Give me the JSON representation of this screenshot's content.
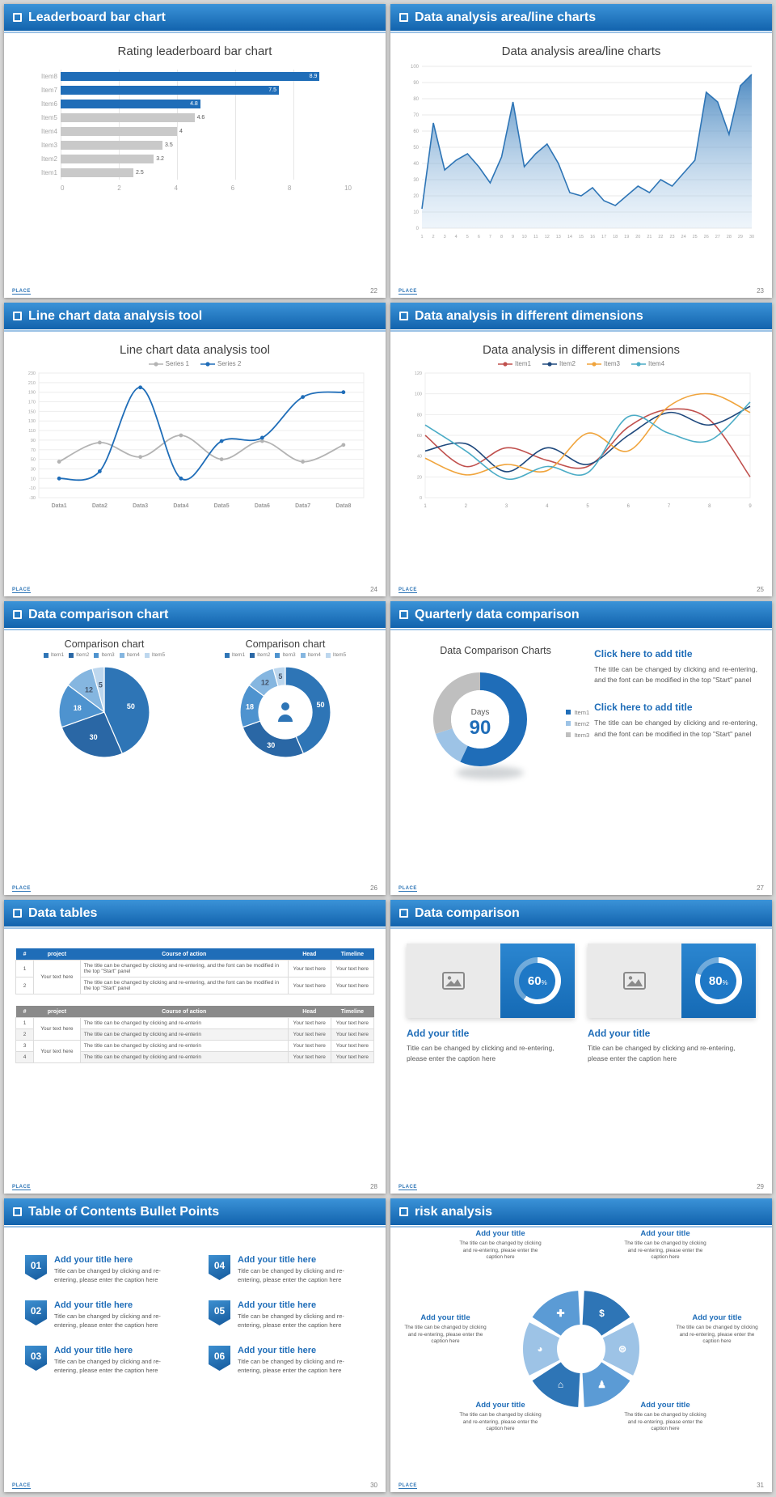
{
  "background": "#d6d6d6",
  "accent": "#1f6db8",
  "footer_logo": "PLACE",
  "slides": [
    {
      "header": "Leaderboard bar chart",
      "page": "22"
    },
    {
      "header": "Data analysis area/line charts",
      "page": "23"
    },
    {
      "header": "Line chart data analysis tool",
      "page": "24"
    },
    {
      "header": "Data analysis in different dimensions",
      "page": "25"
    },
    {
      "header": "Data comparison chart",
      "page": "26"
    },
    {
      "header": "Quarterly data comparison",
      "page": "27",
      "blocks": [
        {
          "title": "Click here to add title",
          "body": "The title can be changed by clicking and re-entering, and the font can be modified in the top \"Start\" panel"
        },
        {
          "title": "Click here to add title",
          "body": "The title can be changed by clicking and re-entering, and the font can be modified in the top \"Start\" panel"
        }
      ]
    },
    {
      "header": "Data tables",
      "page": "28",
      "table1": {
        "columns": [
          "#",
          "project",
          "Course of action",
          "Head",
          "Timeline"
        ],
        "project": "Your text here",
        "rows": [
          {
            "num": "1",
            "action": "The title can be changed by clicking and re-entering, and the font can be modified in the top \"Start\" panel",
            "head": "Your text here",
            "timeline": "Your text here"
          },
          {
            "num": "2",
            "action": "The title can be changed by clicking and re-entering, and the font can be modified in the top \"Start\" panel",
            "head": "Your text here",
            "timeline": "Your text here"
          }
        ]
      },
      "table2": {
        "columns": [
          "#",
          "project",
          "Course of action",
          "Head",
          "Timeline"
        ],
        "project1": "Your text here",
        "project2": "Your text here",
        "rows": [
          {
            "num": "1",
            "action": "The title can be changed by clicking and re-enterin",
            "head": "Your text here",
            "timeline": "Your text here"
          },
          {
            "num": "2",
            "action": "The title can be changed by clicking and re-enterin",
            "head": "Your text here",
            "timeline": "Your text here"
          },
          {
            "num": "3",
            "action": "The title can be changed by clicking and re-enterin",
            "head": "Your text here",
            "timeline": "Your text here"
          },
          {
            "num": "4",
            "action": "The title can be changed by clicking and re-enterin",
            "head": "Your text here",
            "timeline": "Your text here"
          }
        ]
      }
    },
    {
      "header": "Data comparison",
      "page": "29",
      "cards": [
        {
          "title": "Add your title",
          "caption": "Title can be changed by clicking and re-entering, please enter the caption here"
        },
        {
          "title": "Add your title",
          "caption": "Title can be changed by clicking and re-entering, please enter the caption here"
        }
      ]
    },
    {
      "header": "Table of Contents Bullet Points",
      "page": "30",
      "items": [
        {
          "num": "01",
          "title": "Add your title here",
          "caption": "Title can be changed by clicking and re-entering, please enter the caption here"
        },
        {
          "num": "02",
          "title": "Add your title here",
          "caption": "Title can be changed by clicking and re-entering, please enter the caption here"
        },
        {
          "num": "03",
          "title": "Add your title here",
          "caption": "Title can be changed by clicking and re-entering, please enter the caption here"
        },
        {
          "num": "04",
          "title": "Add your title here",
          "caption": "Title can be changed by clicking and re-entering, please enter the caption here"
        },
        {
          "num": "05",
          "title": "Add your title here",
          "caption": "Title can be changed by clicking and re-entering, please enter the caption here"
        },
        {
          "num": "06",
          "title": "Add your title here",
          "caption": "Title can be changed by clicking and re-entering, please enter the caption here"
        }
      ]
    },
    {
      "header": "risk analysis",
      "page": "31",
      "blocks": [
        {
          "title": "Add your title",
          "caption": "The title can be changed by clicking and re-entering, please enter the caption here"
        },
        {
          "title": "Add your title",
          "caption": "The title can be changed by clicking and re-entering, please enter the caption here"
        },
        {
          "title": "Add your title",
          "caption": "The title can be changed by clicking and re-entering, please enter the caption here"
        },
        {
          "title": "Add your title",
          "caption": "The title can be changed by clicking and re-entering, please enter the caption here"
        },
        {
          "title": "Add your title",
          "caption": "The title can be changed by clicking and re-entering, please enter the caption here"
        },
        {
          "title": "Add your title",
          "caption": "The title can be changed by clicking and re-entering, please enter the caption here"
        }
      ],
      "icons": [
        {
          "name": "money-bag-icon",
          "glyph": "$"
        },
        {
          "name": "coins-icon",
          "glyph": "⊜"
        },
        {
          "name": "people-icon",
          "glyph": "♟"
        },
        {
          "name": "building-icon",
          "glyph": "⌂"
        },
        {
          "name": "pie-chart-icon",
          "glyph": "◕"
        },
        {
          "name": "growth-icon",
          "glyph": "✚"
        }
      ]
    }
  ],
  "chart_data": [
    {
      "id": "leaderboard",
      "type": "bar",
      "orientation": "horizontal",
      "title": "Rating leaderboard bar chart",
      "categories": [
        "Item8",
        "Item7",
        "Item6",
        "Item5",
        "Item4",
        "Item3",
        "Item2",
        "Item1"
      ],
      "values": [
        8.9,
        7.5,
        4.8,
        4.6,
        4,
        3.5,
        3.2,
        2.5
      ],
      "highlight": [
        true,
        true,
        true,
        false,
        false,
        false,
        false,
        false
      ],
      "bar_color": "#1f6db8",
      "bar_color_muted": "#c9c9c9",
      "xlim": [
        0,
        10
      ],
      "xticks": [
        0,
        2,
        4,
        6,
        8,
        10
      ]
    },
    {
      "id": "area",
      "type": "area",
      "title": "Data analysis area/line charts",
      "x": [
        1,
        2,
        3,
        4,
        5,
        6,
        7,
        8,
        9,
        10,
        11,
        12,
        13,
        14,
        15,
        16,
        17,
        18,
        19,
        20,
        21,
        22,
        23,
        24,
        25,
        26,
        27,
        28,
        29,
        30
      ],
      "values": [
        12,
        65,
        36,
        42,
        46,
        38,
        28,
        44,
        78,
        38,
        46,
        52,
        40,
        22,
        20,
        25,
        17,
        14,
        20,
        26,
        22,
        30,
        26,
        34,
        42,
        84,
        78,
        58,
        88,
        95
      ],
      "ylim": [
        0,
        100
      ],
      "ystep": 10,
      "line_color": "#2e75b6"
    },
    {
      "id": "line-tool",
      "type": "line",
      "title": "Line chart data analysis tool",
      "categories": [
        "Data1",
        "Data2",
        "Data3",
        "Data4",
        "Data5",
        "Data6",
        "Data7",
        "Data8"
      ],
      "series": [
        {
          "name": "Series 1",
          "color": "#b3b3b3",
          "values": [
            45,
            85,
            55,
            100,
            50,
            88,
            45,
            80
          ]
        },
        {
          "name": "Series 2",
          "color": "#1f6db8",
          "values": [
            10,
            25,
            200,
            10,
            88,
            95,
            180,
            190
          ]
        }
      ],
      "ylim": [
        -30,
        230
      ],
      "ystep": 20,
      "markers": true
    },
    {
      "id": "dimensions",
      "type": "line",
      "title": "Data analysis in different dimensions",
      "x": [
        1,
        2,
        3,
        4,
        5,
        6,
        7,
        8,
        9
      ],
      "series": [
        {
          "name": "Item1",
          "color": "#c0504d",
          "values": [
            60,
            30,
            48,
            36,
            30,
            68,
            85,
            75,
            20
          ]
        },
        {
          "name": "Item2",
          "color": "#1f497d",
          "values": [
            45,
            52,
            25,
            48,
            32,
            60,
            82,
            70,
            88
          ]
        },
        {
          "name": "Item3",
          "color": "#f0a43c",
          "values": [
            38,
            22,
            32,
            26,
            62,
            45,
            88,
            100,
            82
          ]
        },
        {
          "name": "Item4",
          "color": "#4bacc6",
          "values": [
            70,
            45,
            18,
            30,
            24,
            78,
            62,
            55,
            92
          ]
        }
      ],
      "ylim": [
        0,
        120
      ],
      "ystep": 20,
      "markers": false
    },
    {
      "id": "comparison-pie",
      "type": "pie",
      "title": "Comparison chart",
      "categories": [
        "Item1",
        "Item2",
        "Item3",
        "Item4",
        "Item5"
      ],
      "values": [
        50,
        30,
        18,
        12,
        5
      ],
      "colors": [
        "#2e75b6",
        "#2a67a5",
        "#4e93cf",
        "#85b6e0",
        "#bdd7ee"
      ]
    },
    {
      "id": "comparison-donut",
      "type": "donut",
      "title": "Comparison chart",
      "categories": [
        "Item1",
        "Item2",
        "Item3",
        "Item4",
        "Item5"
      ],
      "values": [
        50,
        30,
        18,
        12,
        5
      ],
      "colors": [
        "#2e75b6",
        "#2a67a5",
        "#4e93cf",
        "#85b6e0",
        "#bdd7ee"
      ],
      "center_icon": "presenter-icon"
    },
    {
      "id": "quarterly-donut",
      "type": "donut",
      "title": "Data Comparison Charts",
      "categories": [
        "Item1",
        "Item2",
        "Item3"
      ],
      "values": [
        57,
        13,
        30
      ],
      "colors": [
        "#1f6db8",
        "#9dc3e6",
        "#bfbfbf"
      ],
      "center_label": "Days",
      "center_value": "90"
    },
    {
      "id": "gauge-60",
      "type": "donut-gauge",
      "value": 60,
      "max": 100,
      "label": "60",
      "unit": "%"
    },
    {
      "id": "gauge-80",
      "type": "donut-gauge",
      "value": 80,
      "max": 100,
      "label": "80",
      "unit": "%"
    }
  ]
}
